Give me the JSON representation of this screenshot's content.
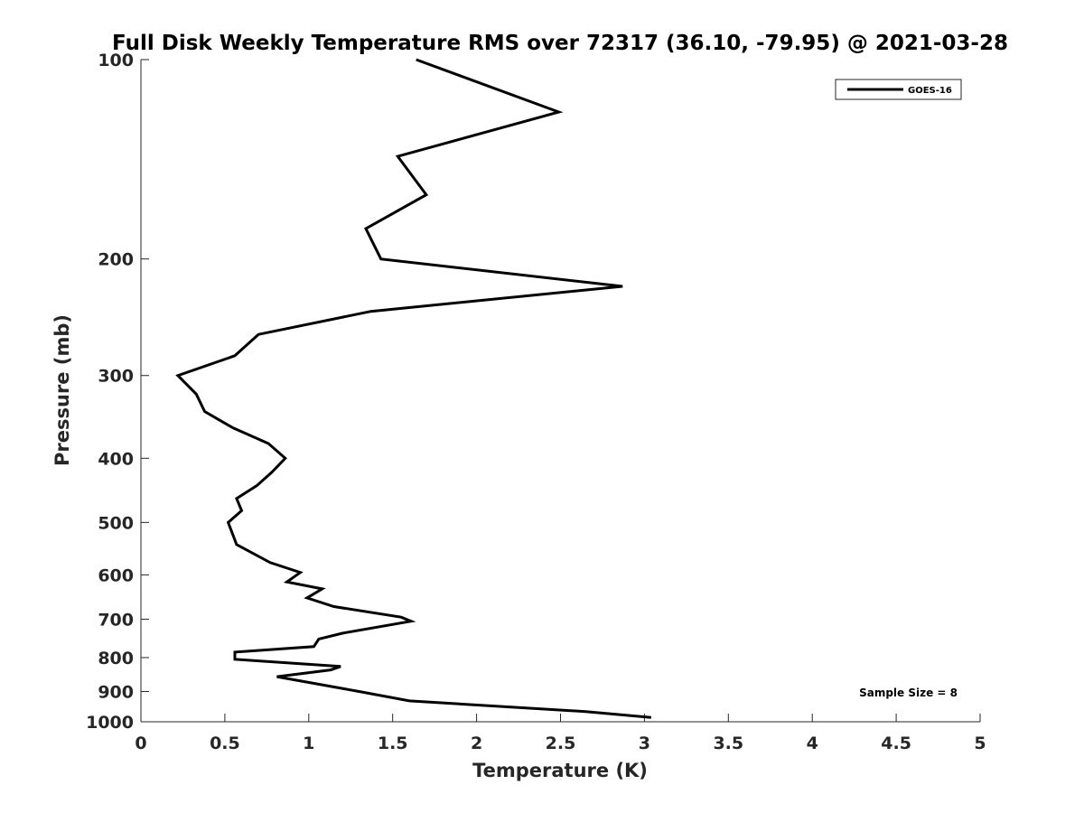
{
  "chart_data": {
    "type": "line",
    "title": "Full Disk Weekly Temperature RMS over 72317 (36.10, -79.95) @ 2021-03-28",
    "xlabel": "Temperature (K)",
    "ylabel": "Pressure (mb)",
    "xlim": [
      0,
      5
    ],
    "ylim": [
      100,
      1000
    ],
    "y_scale": "log",
    "y_reversed": true,
    "grid": false,
    "x_ticks": [
      0,
      0.5,
      1,
      1.5,
      2,
      2.5,
      3,
      3.5,
      4,
      4.5,
      5
    ],
    "x_tick_labels": [
      "0",
      "0.5",
      "1",
      "1.5",
      "2",
      "2.5",
      "3",
      "3.5",
      "4",
      "4.5",
      "5"
    ],
    "y_ticks": [
      100,
      200,
      300,
      400,
      500,
      600,
      700,
      800,
      900,
      1000
    ],
    "y_tick_labels": [
      "100",
      "200",
      "300",
      "400",
      "500",
      "600",
      "700",
      "800",
      "900",
      "1000"
    ],
    "legend_position": "top-right",
    "annotation": "Sample Size = 8",
    "series": [
      {
        "name": "GOES-16",
        "color": "#000000",
        "x": [
          1.64,
          2.49,
          1.53,
          1.7,
          1.34,
          1.43,
          2.87,
          1.37,
          0.7,
          0.56,
          0.22,
          0.33,
          0.38,
          0.55,
          0.76,
          0.86,
          0.78,
          0.69,
          0.57,
          0.6,
          0.52,
          0.57,
          0.77,
          0.95,
          0.87,
          1.08,
          0.99,
          1.15,
          1.55,
          1.61,
          1.2,
          1.06,
          1.03,
          0.56,
          0.56,
          1.19,
          1.13,
          0.81,
          1.3,
          1.6,
          2.65,
          3.04
        ],
        "y": [
          100,
          120,
          140,
          160,
          180,
          200,
          220,
          240,
          260,
          280,
          300,
          320,
          340,
          360,
          380,
          400,
          420,
          440,
          460,
          480,
          500,
          540,
          575,
          595,
          615,
          630,
          650,
          670,
          695,
          705,
          735,
          750,
          770,
          785,
          805,
          825,
          835,
          855,
          900,
          930,
          965,
          985
        ]
      }
    ]
  }
}
